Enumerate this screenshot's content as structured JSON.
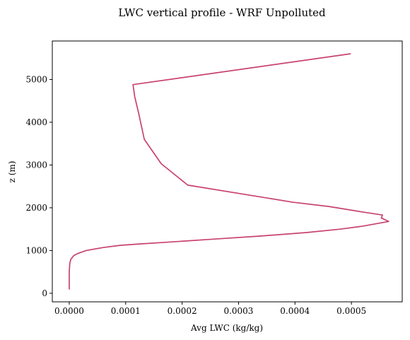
{
  "chart_data": {
    "type": "line",
    "title": "LWC vertical profile - WRF Unpolluted",
    "xlabel": "Avg LWC (kg/kg)",
    "ylabel": "z (m)",
    "xlim": [
      -3e-05,
      0.00059
    ],
    "ylim": [
      -200,
      5900
    ],
    "xticks": [
      0,
      0.0001,
      0.0002,
      0.0003,
      0.0004,
      0.0005
    ],
    "xtick_labels": [
      "0.0000",
      "0.0001",
      "0.0002",
      "0.0003",
      "0.0004",
      "0.0005"
    ],
    "yticks": [
      0,
      1000,
      2000,
      3000,
      4000,
      5000
    ],
    "ytick_labels": [
      "0",
      "1000",
      "2000",
      "3000",
      "4000",
      "5000"
    ],
    "grid": false,
    "series": [
      {
        "color": "#c8426f",
        "x": [
          0.0,
          0.0,
          0.0,
          1e-06,
          3e-06,
          8e-06,
          1.5e-05,
          3e-05,
          6e-05,
          9e-05,
          0.00012,
          0.00018,
          0.00026,
          0.00034,
          0.00042,
          0.00048,
          0.00052,
          0.000566,
          0.000553,
          0.000555,
          0.00052,
          0.00046,
          0.000396,
          0.00021,
          0.000163,
          0.000133,
          0.000123,
          0.000116,
          0.000113,
          0.000498
        ],
        "y": [
          100,
          300,
          500,
          700,
          800,
          880,
          930,
          1000,
          1070,
          1120,
          1150,
          1200,
          1270,
          1340,
          1420,
          1500,
          1570,
          1680,
          1760,
          1830,
          1900,
          2030,
          2130,
          2530,
          3030,
          3600,
          4210,
          4600,
          4880,
          5600
        ]
      }
    ]
  }
}
